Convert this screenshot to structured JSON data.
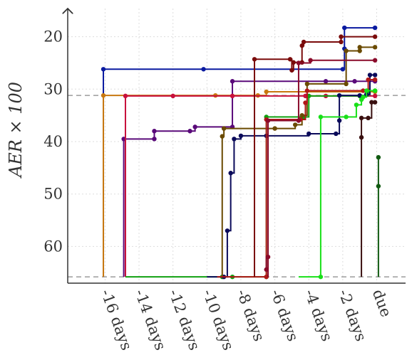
{
  "chart_data": {
    "type": "line",
    "ylabel": "AER × 100",
    "x_ticks": [
      "-16 days",
      "-14 days",
      "-12 days",
      "-10 days",
      "-8 days",
      "-6 days",
      "-4 days",
      "-2 days",
      "due"
    ],
    "x_tick_values": [
      -16,
      -14,
      -12,
      -10,
      -8,
      -6,
      -4,
      -2,
      0
    ],
    "xlim": [
      -18.2,
      1.7
    ],
    "y_ticks": [
      20,
      30,
      40,
      50,
      60
    ],
    "ylim": [
      13,
      67
    ],
    "y_inverted": true,
    "grid": true,
    "reference_lines": [
      31.2,
      65.8
    ],
    "series": [
      {
        "color": "#0a1aa0",
        "points": [
          [
            -16.1,
            65.8
          ],
          [
            -16.1,
            26.2
          ],
          [
            -10.2,
            26.2
          ],
          [
            -2.0,
            26.2
          ],
          [
            -1.9,
            22.3
          ],
          [
            -1.9,
            18.3
          ],
          [
            -0.1,
            18.3
          ]
        ]
      },
      {
        "color": "#c87810",
        "points": [
          [
            -16.1,
            65.8
          ],
          [
            -16.1,
            31.2
          ],
          [
            -9.5,
            31.2
          ],
          [
            -7.0,
            31.2
          ],
          [
            -6.5,
            30.5
          ],
          [
            -0.1,
            30.5
          ]
        ]
      },
      {
        "color": "#5a0a7a",
        "points": [
          [
            -14.9,
            65.8
          ],
          [
            -14.9,
            39.5
          ],
          [
            -13.1,
            39.5
          ],
          [
            -13.1,
            38.0
          ],
          [
            -11.0,
            38.0
          ],
          [
            -10.7,
            37.2
          ],
          [
            -8.5,
            37.2
          ],
          [
            -8.5,
            28.5
          ],
          [
            -3.0,
            28.5
          ],
          [
            -1.3,
            28.5
          ],
          [
            -0.1,
            28.5
          ]
        ]
      },
      {
        "color": "#c8103c",
        "points": [
          [
            -14.8,
            65.8
          ],
          [
            -14.8,
            31.3
          ],
          [
            -12.0,
            31.3
          ],
          [
            -8.5,
            31.3
          ],
          [
            -4.2,
            31.3
          ],
          [
            -3.0,
            31.3
          ],
          [
            -0.1,
            31.3
          ]
        ]
      },
      {
        "color": "#10a010",
        "points": [
          [
            -14.8,
            65.8
          ],
          [
            -9.1,
            65.8
          ],
          [
            -8.5,
            65.8
          ],
          [
            -6.5,
            65.8
          ],
          [
            -6.5,
            35.3
          ],
          [
            -4.3,
            35.3
          ],
          [
            -4.0,
            31.3
          ],
          [
            -1.0,
            31.3
          ],
          [
            -0.5,
            30.3
          ],
          [
            -0.1,
            30.3
          ]
        ]
      },
      {
        "color": "#0a0a5a",
        "points": [
          [
            -10.0,
            65.8
          ],
          [
            -9.0,
            65.8
          ],
          [
            -8.8,
            57.0
          ],
          [
            -8.6,
            46.0
          ],
          [
            -8.4,
            39.5
          ],
          [
            -8.0,
            38.9
          ],
          [
            -6.5,
            38.9
          ],
          [
            -4.0,
            38.5
          ],
          [
            -2.4,
            38.5
          ],
          [
            -2.2,
            36.0
          ],
          [
            -2.2,
            31.2
          ],
          [
            -1.0,
            31.2
          ],
          [
            -0.6,
            31.0
          ],
          [
            -0.4,
            27.3
          ],
          [
            -0.1,
            27.3
          ]
        ]
      },
      {
        "color": "#6a4a00",
        "points": [
          [
            -9.1,
            65.8
          ],
          [
            -9.1,
            39.0
          ],
          [
            -9.0,
            37.5
          ],
          [
            -6.0,
            37.5
          ],
          [
            -4.8,
            36.8
          ],
          [
            -4.4,
            35.0
          ],
          [
            -4.1,
            29.0
          ],
          [
            -1.8,
            29.0
          ],
          [
            -1.8,
            22.7
          ],
          [
            -1.0,
            22.7
          ],
          [
            -1.0,
            22.0
          ],
          [
            -0.1,
            22.0
          ]
        ]
      },
      {
        "color": "#b01818",
        "points": [
          [
            -9.4,
            65.8
          ],
          [
            -6.5,
            65.8
          ],
          [
            -6.5,
            35.8
          ],
          [
            -4.5,
            35.8
          ],
          [
            -4.2,
            32.6
          ],
          [
            -4.1,
            30.3
          ],
          [
            -0.8,
            30.3
          ],
          [
            -0.5,
            28.2
          ],
          [
            -0.1,
            28.2
          ]
        ]
      },
      {
        "color": "#7a0a0a",
        "points": [
          [
            -7.2,
            65.8
          ],
          [
            -7.2,
            24.3
          ],
          [
            -5.1,
            24.3
          ],
          [
            -5.0,
            26.4
          ],
          [
            -4.9,
            24.9
          ],
          [
            -4.4,
            24.9
          ],
          [
            -4.4,
            21.7
          ],
          [
            -4.3,
            21.0
          ],
          [
            -2.1,
            21.0
          ],
          [
            -2.1,
            20.0
          ],
          [
            -0.1,
            20.0
          ]
        ]
      },
      {
        "color": "#8a0a2a",
        "points": [
          [
            -6.4,
            65.8
          ],
          [
            -6.4,
            62.0
          ],
          [
            -6.5,
            64.4
          ],
          [
            -6.4,
            36.0
          ],
          [
            -4.6,
            36.0
          ],
          [
            -4.6,
            25.0
          ],
          [
            -3.9,
            24.5
          ],
          [
            -0.1,
            24.5
          ]
        ]
      },
      {
        "color": "#3a1010",
        "points": [
          [
            -0.9,
            65.8
          ],
          [
            -0.9,
            39.2
          ],
          [
            -0.9,
            35.5
          ],
          [
            -0.5,
            35.5
          ],
          [
            -0.3,
            32.5
          ],
          [
            -0.1,
            32.5
          ]
        ]
      },
      {
        "color": "#18e018",
        "points": [
          [
            -4.6,
            65.8
          ],
          [
            -3.3,
            65.8
          ],
          [
            -3.3,
            35.3
          ],
          [
            -1.8,
            35.3
          ],
          [
            -1.2,
            33.0
          ],
          [
            -0.9,
            32.0
          ],
          [
            -0.8,
            31.5
          ],
          [
            -0.6,
            30.3
          ],
          [
            -0.1,
            30.3
          ]
        ]
      },
      {
        "color": "#105a10",
        "points": [
          [
            0.1,
            65.8
          ],
          [
            0.1,
            48.5
          ],
          [
            0.1,
            43.0
          ]
        ]
      }
    ]
  }
}
